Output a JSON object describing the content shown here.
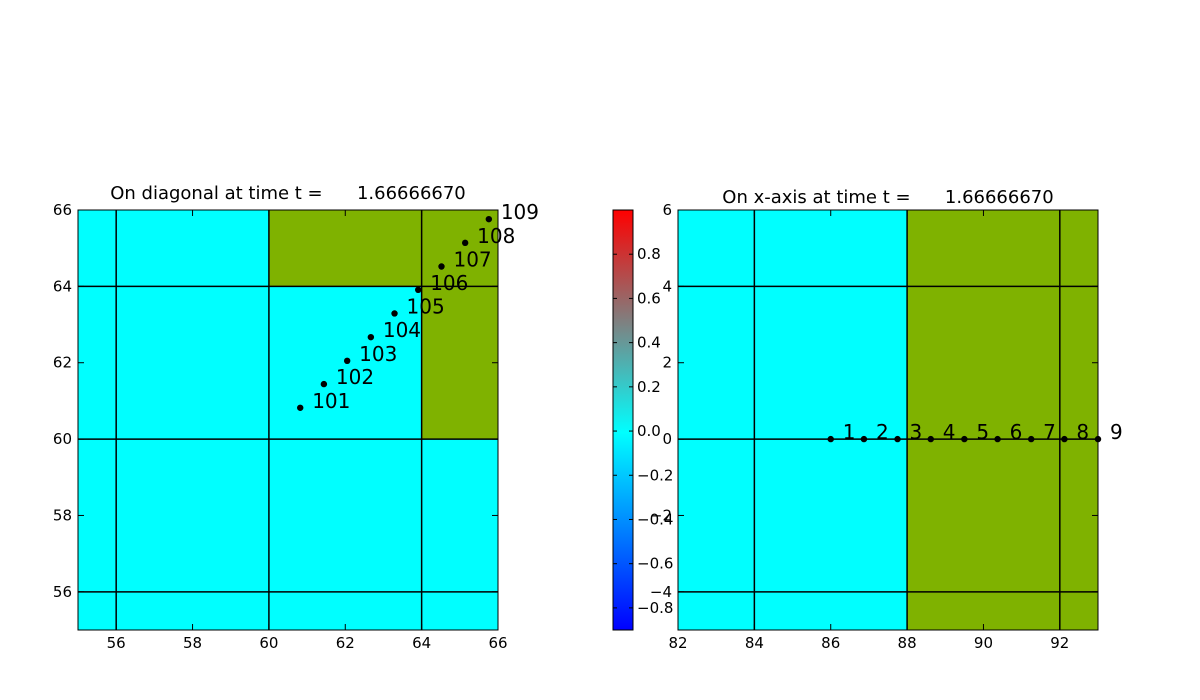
{
  "colors": {
    "cyan_region": "#00ffff",
    "green_region": "#7fb200",
    "grid_line": "#000000",
    "marker": "#000000",
    "colorbar_low": "#0000ff",
    "colorbar_mid": "#00ffff",
    "colorbar_high": "#ff0000"
  },
  "chart_data": [
    {
      "type": "scatter",
      "title": "On diagonal at time t =      1.66666670",
      "xlabel": "",
      "ylabel": "",
      "xlim": [
        55,
        66
      ],
      "ylim": [
        55,
        66
      ],
      "xticks": [
        "56",
        "58",
        "60",
        "62",
        "64",
        "66"
      ],
      "yticks": [
        "56",
        "58",
        "60",
        "62",
        "64",
        "66"
      ],
      "xtick_values": [
        56,
        58,
        60,
        62,
        64,
        66
      ],
      "ytick_values": [
        56,
        58,
        60,
        62,
        64,
        66
      ],
      "background": [
        {
          "x": [
            55,
            66
          ],
          "y": [
            55,
            66
          ],
          "color": "cyan"
        },
        {
          "x": [
            60,
            66
          ],
          "y": [
            64,
            66
          ],
          "color": "green"
        },
        {
          "x": [
            64,
            66
          ],
          "y": [
            60,
            64
          ],
          "color": "green"
        }
      ],
      "grid_lines_x": [
        56,
        60,
        64
      ],
      "grid_lines_y": [
        56,
        60,
        64
      ],
      "points": [
        {
          "x": 60.82,
          "y": 60.82,
          "label": "101"
        },
        {
          "x": 61.44,
          "y": 61.44,
          "label": "102"
        },
        {
          "x": 62.05,
          "y": 62.05,
          "label": "103"
        },
        {
          "x": 62.67,
          "y": 62.67,
          "label": "104"
        },
        {
          "x": 63.29,
          "y": 63.29,
          "label": "105"
        },
        {
          "x": 63.91,
          "y": 63.91,
          "label": "106"
        },
        {
          "x": 64.52,
          "y": 64.52,
          "label": "107"
        },
        {
          "x": 65.14,
          "y": 65.14,
          "label": "108"
        },
        {
          "x": 65.76,
          "y": 65.76,
          "label": "109"
        }
      ]
    },
    {
      "type": "scatter",
      "title": "On x-axis at time t =      1.66666670",
      "xlabel": "",
      "ylabel": "",
      "xlim": [
        82,
        93
      ],
      "ylim": [
        -5,
        6
      ],
      "xticks": [
        "82",
        "84",
        "86",
        "88",
        "90",
        "92"
      ],
      "yticks": [
        "−4",
        "−2",
        "0",
        "2",
        "4",
        "6"
      ],
      "xtick_values": [
        82,
        84,
        86,
        88,
        90,
        92
      ],
      "ytick_values": [
        -4,
        -2,
        0,
        2,
        4,
        6
      ],
      "background": [
        {
          "x": [
            82,
            88
          ],
          "y": [
            -5,
            6
          ],
          "color": "cyan"
        },
        {
          "x": [
            88,
            93
          ],
          "y": [
            -5,
            6
          ],
          "color": "green"
        }
      ],
      "grid_lines_x": [
        84,
        88,
        92
      ],
      "grid_lines_y": [
        -4,
        0,
        4
      ],
      "points": [
        {
          "x": 86.0,
          "y": 0,
          "label": "1"
        },
        {
          "x": 86.87,
          "y": 0,
          "label": "2"
        },
        {
          "x": 87.75,
          "y": 0,
          "label": "3"
        },
        {
          "x": 88.62,
          "y": 0,
          "label": "4"
        },
        {
          "x": 89.5,
          "y": 0,
          "label": "5"
        },
        {
          "x": 90.37,
          "y": 0,
          "label": "6"
        },
        {
          "x": 91.25,
          "y": 0,
          "label": "7"
        },
        {
          "x": 92.12,
          "y": 0,
          "label": "8"
        },
        {
          "x": 93.0,
          "y": 0,
          "label": "9"
        }
      ],
      "colorbar": {
        "range": [
          -0.9,
          1.0
        ],
        "ticks": [
          "−0.8",
          "−0.6",
          "−0.4",
          "−0.2",
          "0.0",
          "0.2",
          "0.4",
          "0.6",
          "0.8"
        ],
        "tick_values": [
          -0.8,
          -0.6,
          -0.4,
          -0.2,
          0.0,
          0.2,
          0.4,
          0.6,
          0.8
        ],
        "placement": "left"
      }
    }
  ]
}
